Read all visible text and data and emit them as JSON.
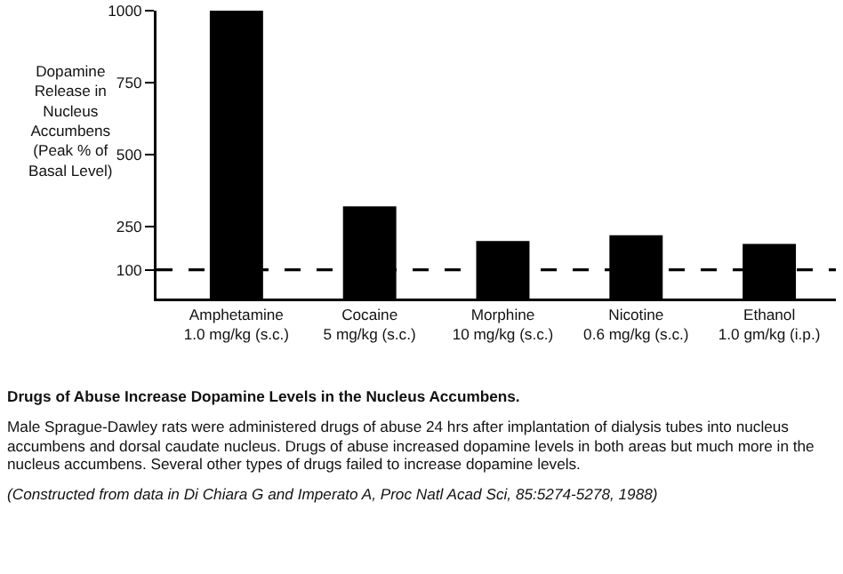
{
  "chart_data": {
    "type": "bar",
    "title": "Drugs of Abuse Increase Dopamine Levels in the Nucleus Accumbens.",
    "ylabel": "Dopamine\nRelease in\nNucleus\nAccumbens\n(Peak % of\nBasal Level)",
    "categories": [
      "Amphetamine\n1.0 mg/kg (s.c.)",
      "Cocaine\n5 mg/kg (s.c.)",
      "Morphine\n10 mg/kg (s.c.)",
      "Nicotine\n0.6 mg/kg (s.c.)",
      "Ethanol\n1.0 gm/kg (i.p.)"
    ],
    "values": [
      1000,
      320,
      200,
      220,
      190
    ],
    "color": "#000000",
    "ylim": [
      0,
      1000
    ],
    "yticks": [
      100,
      250,
      500,
      750,
      1000
    ],
    "grid": false,
    "legend": false,
    "ref_lines": [
      {
        "axis": "y",
        "value": 100,
        "color": "#000000",
        "line_style": "dashed"
      }
    ],
    "annotations": [
      "Male Sprague-Dawley rats were administered drugs of abuse 24 hrs after implantation of dialysis tubes into nucleus accumbens and dorsal caudate nucleus. Drugs of abuse increased dopamine levels in both areas but much more in the nucleus accumbens. Several other types of drugs failed to increase dopamine levels.",
      "(Constructed from data in Di Chiara G and Imperato A, Proc Natl Acad Sci, 85:5274-5278, 1988)"
    ]
  }
}
